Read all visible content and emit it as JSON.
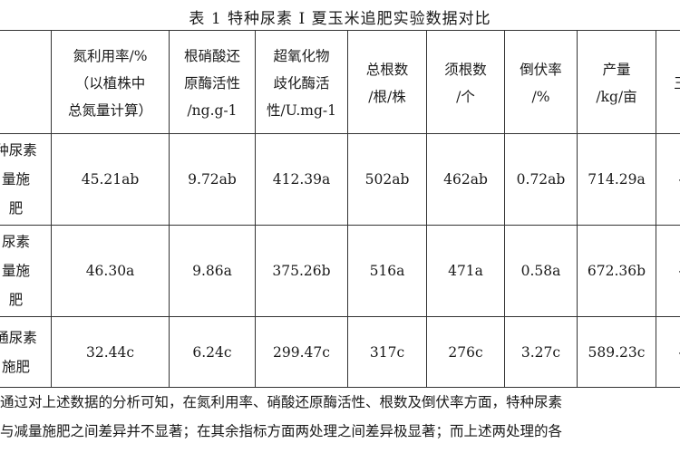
{
  "title": "表 1  特种尿素 I 夏玉米追肥实验数据对比",
  "table": {
    "headers": [
      "",
      "氮利用率/%\n（以植株中\n总氮量计算）",
      "根硝酸还\n原酶活性\n/ng.g-1",
      "超氧化物\n歧化酶活\n性/U.mg-1",
      "总根数\n/根/株",
      "须根数\n/个",
      "倒伏率\n/%",
      "产量\n/kg/亩",
      "王"
    ],
    "rows": [
      {
        "label": "种尿素\n量施\n肥",
        "cells": [
          "45.21ab",
          "9.72ab",
          "412.39a",
          "502ab",
          "462ab",
          "0.72ab",
          "714.29a",
          "-"
        ]
      },
      {
        "label": "尿素\n量施\n肥",
        "cells": [
          "46.30a",
          "9.86a",
          "375.26b",
          "516a",
          "471a",
          "0.58a",
          "672.36b",
          "-"
        ]
      },
      {
        "label": "通尿素\n施肥",
        "cells": [
          "32.44c",
          "6.24c",
          "299.47c",
          "317c",
          "276c",
          "3.27c",
          "589.23c",
          "-"
        ]
      }
    ]
  },
  "footer": {
    "line1": "通过对上述数据的分析可知，在氮利用率、硝酸还原酶活性、根数及倒伏率方面，特种尿素",
    "line2": "与减量施肥之间差异并不显著；在其余指标方面两处理之间差异极显著；而上述两处理的各"
  }
}
